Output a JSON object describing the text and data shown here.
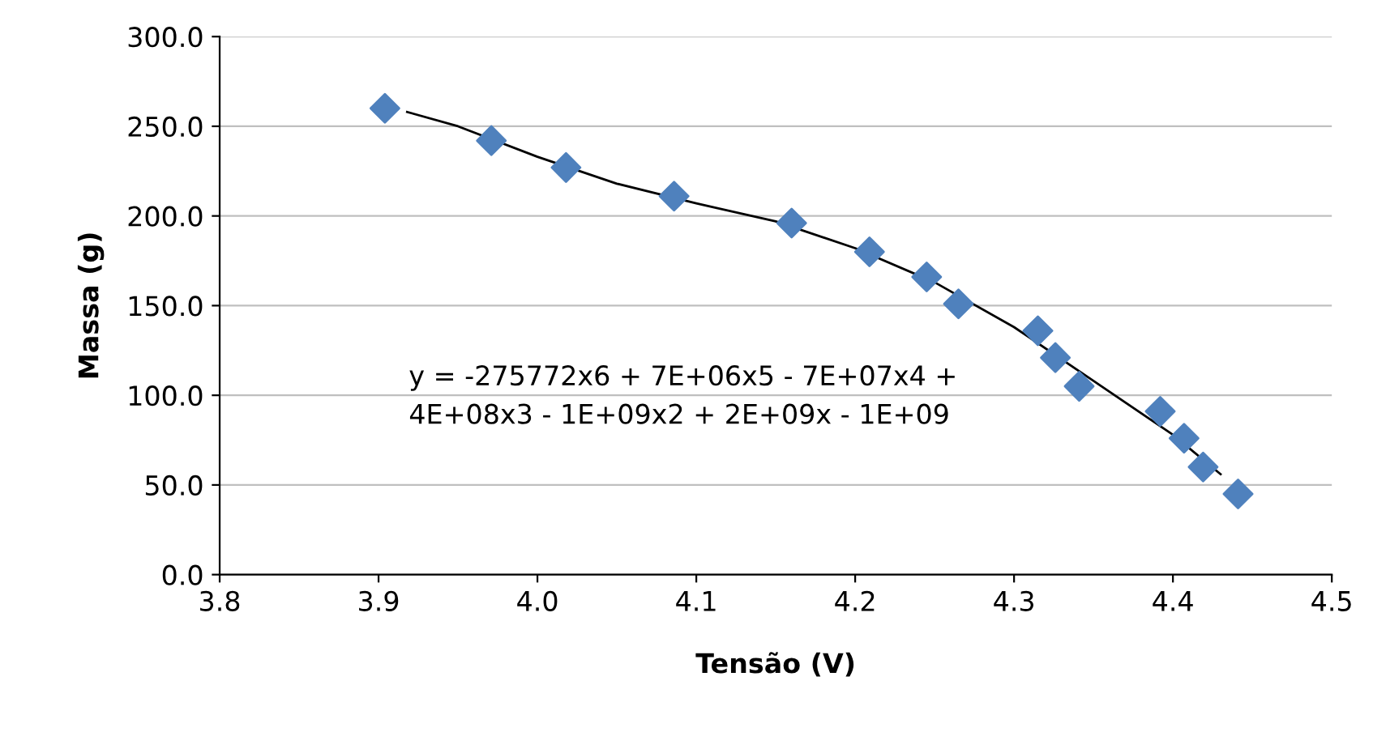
{
  "chart_data": {
    "type": "scatter",
    "xlabel": "Tensão (V)",
    "ylabel": "Massa (g)",
    "xlim": [
      3.8,
      4.5
    ],
    "xticks": [
      {
        "value": 3.8,
        "label": "3.8"
      },
      {
        "value": 3.9,
        "label": "3.9"
      },
      {
        "value": 4.0,
        "label": "4.0"
      },
      {
        "value": 4.1,
        "label": "4.1"
      },
      {
        "value": 4.2,
        "label": "4.2"
      },
      {
        "value": 4.3,
        "label": "4.3"
      },
      {
        "value": 4.4,
        "label": "4.4"
      },
      {
        "value": 4.5,
        "label": "4.5"
      }
    ],
    "ylim": [
      0,
      300
    ],
    "yticks": [
      {
        "value": 0,
        "label": "0.0"
      },
      {
        "value": 50,
        "label": "50.0"
      },
      {
        "value": 100,
        "label": "100.0"
      },
      {
        "value": 150,
        "label": "150.0"
      },
      {
        "value": 200,
        "label": "200.0"
      },
      {
        "value": 250,
        "label": "250.0"
      },
      {
        "value": 300,
        "label": "300.0"
      }
    ],
    "grid": "y",
    "marker": "diamond",
    "series": [
      {
        "color": "#4f81bd",
        "x": [
          3.904,
          3.971,
          4.018,
          4.086,
          4.16,
          4.209,
          4.245,
          4.265,
          4.315,
          4.326,
          4.341,
          4.392,
          4.407,
          4.419,
          4.441
        ],
        "values": [
          260,
          242,
          227,
          211,
          196,
          180,
          166,
          151,
          136,
          121,
          105,
          91,
          76,
          60,
          45
        ]
      },
      {
        "type": "line",
        "color": "#000000",
        "marker": "none",
        "line_style": "solid",
        "x": [
          3.918,
          3.95,
          4.0,
          4.05,
          4.1,
          4.15,
          4.2,
          4.25,
          4.3,
          4.35,
          4.4,
          4.43
        ],
        "values": [
          258,
          250,
          233,
          218,
          207,
          197,
          182,
          163,
          138,
          108,
          78,
          56
        ]
      }
    ],
    "annotations": [
      "y = -275772x6 + 7E+06x5 - 7E+07x4 +\n4E+08x3 - 1E+09x2 + 2E+09x - 1E+09"
    ]
  }
}
